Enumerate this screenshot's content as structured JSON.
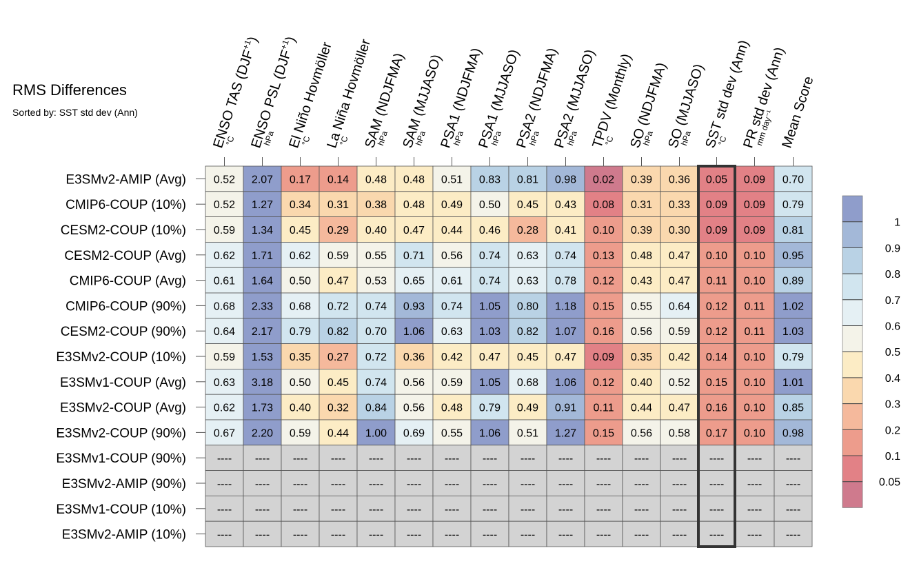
{
  "chart_data": {
    "type": "heatmap",
    "title": "RMS Differences",
    "subtitle": "Sorted by: SST std dev (Ann)",
    "columns": [
      {
        "label": "ENSO TAS (DJF",
        "sup": "+1",
        "tail": ")",
        "unit": "°C"
      },
      {
        "label": "ENSO PSL (DJF",
        "sup": "+1",
        "tail": ")",
        "unit": "hPa"
      },
      {
        "label": "El Niño Hovmöller",
        "sup": "",
        "tail": "",
        "unit": "°C"
      },
      {
        "label": "La Niña Hovmöller",
        "sup": "",
        "tail": "",
        "unit": "°C"
      },
      {
        "label": "SAM (NDJFMA)",
        "sup": "",
        "tail": "",
        "unit": "hPa"
      },
      {
        "label": "SAM (MJJASO)",
        "sup": "",
        "tail": "",
        "unit": "hPa"
      },
      {
        "label": "PSA1 (NDJFMA)",
        "sup": "",
        "tail": "",
        "unit": "hPa"
      },
      {
        "label": "PSA1 (MJJASO)",
        "sup": "",
        "tail": "",
        "unit": "hPa"
      },
      {
        "label": "PSA2 (NDJFMA)",
        "sup": "",
        "tail": "",
        "unit": "hPa"
      },
      {
        "label": "PSA2 (MJJASO)",
        "sup": "",
        "tail": "",
        "unit": "hPa"
      },
      {
        "label": "TPDV (Monthly)",
        "sup": "",
        "tail": "",
        "unit": "°C"
      },
      {
        "label": "SO (NDJFMA)",
        "sup": "",
        "tail": "",
        "unit": "hPa"
      },
      {
        "label": "SO (MJJASO)",
        "sup": "",
        "tail": "",
        "unit": "hPa"
      },
      {
        "label": "SST std dev (Ann)",
        "sup": "",
        "tail": "",
        "unit": "°C"
      },
      {
        "label": "PR std dev (Ann)",
        "sup": "",
        "tail": "",
        "unit": "mm day⁻¹"
      },
      {
        "label": "Mean Score",
        "sup": "",
        "tail": "",
        "unit": ""
      }
    ],
    "rows": [
      {
        "name": "E3SMv2-AMIP (Avg)",
        "values": [
          0.52,
          2.07,
          0.17,
          0.14,
          0.48,
          0.48,
          0.51,
          0.83,
          0.81,
          0.98,
          0.02,
          0.39,
          0.36,
          0.05,
          0.09,
          0.7
        ]
      },
      {
        "name": "CMIP6-COUP (10%)",
        "values": [
          0.52,
          1.27,
          0.34,
          0.31,
          0.38,
          0.48,
          0.49,
          0.5,
          0.45,
          0.43,
          0.08,
          0.31,
          0.33,
          0.09,
          0.09,
          0.79
        ]
      },
      {
        "name": "CESM2-COUP (10%)",
        "values": [
          0.59,
          1.34,
          0.45,
          0.29,
          0.4,
          0.47,
          0.44,
          0.46,
          0.28,
          0.41,
          0.1,
          0.39,
          0.3,
          0.09,
          0.09,
          0.81
        ]
      },
      {
        "name": "CESM2-COUP (Avg)",
        "values": [
          0.62,
          1.71,
          0.62,
          0.59,
          0.55,
          0.71,
          0.56,
          0.74,
          0.63,
          0.74,
          0.13,
          0.48,
          0.47,
          0.1,
          0.1,
          0.95
        ]
      },
      {
        "name": "CMIP6-COUP (Avg)",
        "values": [
          0.61,
          1.64,
          0.5,
          0.47,
          0.53,
          0.65,
          0.61,
          0.74,
          0.63,
          0.78,
          0.12,
          0.43,
          0.47,
          0.11,
          0.1,
          0.89
        ]
      },
      {
        "name": "CMIP6-COUP (90%)",
        "values": [
          0.68,
          2.33,
          0.68,
          0.72,
          0.74,
          0.93,
          0.74,
          1.05,
          0.8,
          1.18,
          0.15,
          0.55,
          0.64,
          0.12,
          0.11,
          1.02
        ]
      },
      {
        "name": "CESM2-COUP (90%)",
        "values": [
          0.64,
          2.17,
          0.79,
          0.82,
          0.7,
          1.06,
          0.63,
          1.03,
          0.82,
          1.07,
          0.16,
          0.56,
          0.59,
          0.12,
          0.11,
          1.03
        ]
      },
      {
        "name": "E3SMv2-COUP (10%)",
        "values": [
          0.59,
          1.53,
          0.35,
          0.27,
          0.72,
          0.36,
          0.42,
          0.47,
          0.45,
          0.47,
          0.09,
          0.35,
          0.42,
          0.14,
          0.1,
          0.79
        ]
      },
      {
        "name": "E3SMv1-COUP (Avg)",
        "values": [
          0.63,
          3.18,
          0.5,
          0.45,
          0.74,
          0.56,
          0.59,
          1.05,
          0.68,
          1.06,
          0.12,
          0.4,
          0.52,
          0.15,
          0.1,
          1.01
        ]
      },
      {
        "name": "E3SMv2-COUP (Avg)",
        "values": [
          0.62,
          1.73,
          0.4,
          0.32,
          0.84,
          0.56,
          0.48,
          0.79,
          0.49,
          0.91,
          0.11,
          0.44,
          0.47,
          0.16,
          0.1,
          0.85
        ]
      },
      {
        "name": "E3SMv2-COUP (90%)",
        "values": [
          0.67,
          2.2,
          0.59,
          0.44,
          1.0,
          0.69,
          0.55,
          1.06,
          0.51,
          1.27,
          0.15,
          0.56,
          0.58,
          0.17,
          0.1,
          0.98
        ]
      },
      {
        "name": "E3SMv1-COUP (90%)",
        "values": null
      },
      {
        "name": "E3SMv2-AMIP (90%)",
        "values": null
      },
      {
        "name": "E3SMv1-COUP (10%)",
        "values": null
      },
      {
        "name": "E3SMv2-AMIP (10%)",
        "values": null
      }
    ],
    "missing_text": "----",
    "highlight_column": "SST std dev (Ann)",
    "colorbar": {
      "labels": [
        "1",
        "0.9",
        "0.8",
        "0.7",
        "0.6",
        "0.5",
        "0.4",
        "0.3",
        "0.2",
        "0.1",
        "0.05"
      ],
      "colors": [
        "#8f9dcb",
        "#a3b8d8",
        "#b9d2e5",
        "#d1e5ef",
        "#e5f0f4",
        "#f4f3e9",
        "#fcecc5",
        "#fad8ae",
        "#f5b99c",
        "#ed9c8c",
        "#e28186",
        "#cf7a8d"
      ],
      "bounds": [
        0.05,
        0.1,
        0.2,
        0.3,
        0.4,
        0.5,
        0.6,
        0.7,
        0.8,
        0.9,
        1.0
      ],
      "missing_color": "#d3d3d3"
    }
  }
}
